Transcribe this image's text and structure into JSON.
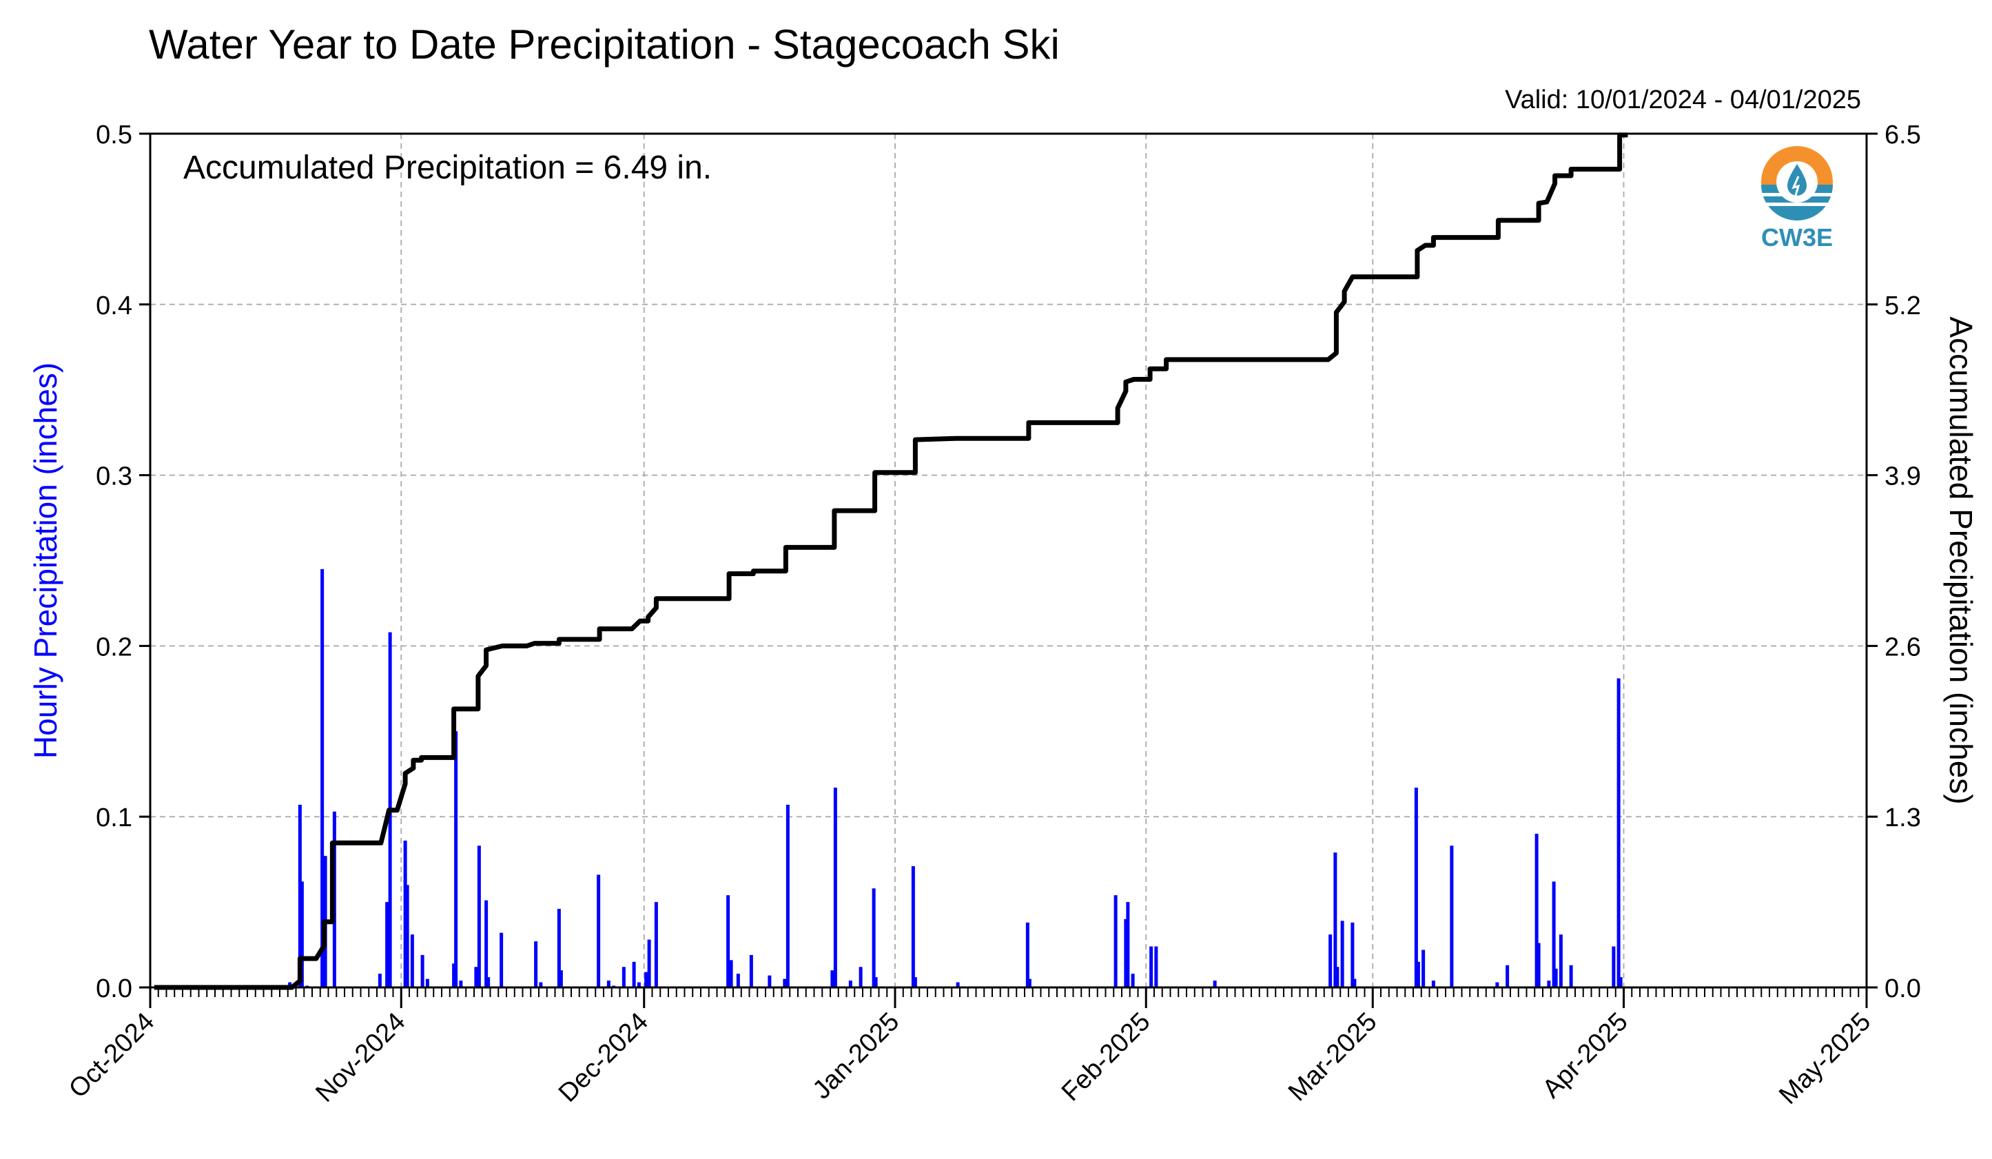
{
  "title": "Water Year to Date Precipitation - Stagecoach Ski",
  "subtitle": "Valid: 10/01/2024 - 04/01/2025",
  "annotation": "Accumulated Precipitation = 6.49 in.",
  "logo": {
    "text": "CW3E",
    "icon": "water-drop-sun-icon",
    "colors": {
      "orange": "#f5912d",
      "blue": "#2e8fb5"
    }
  },
  "colors": {
    "bars": "#0000ff",
    "line": "#000000",
    "grid": "#b0b0b0",
    "left_axis_label": "#0000ff"
  },
  "chart_data": {
    "type": "bar+line",
    "x_axis": {
      "type": "date",
      "range": [
        "2024-10-01",
        "2025-05-01"
      ],
      "ticks": [
        "2024-10-01",
        "2024-11-01",
        "2024-12-01",
        "2025-01-01",
        "2025-02-01",
        "2025-03-01",
        "2025-04-01",
        "2025-05-01"
      ],
      "tick_labels": [
        "Oct-2024",
        "Nov-2024",
        "Dec-2024",
        "Jan-2025",
        "Feb-2025",
        "Mar-2025",
        "Apr-2025",
        "May-2025"
      ]
    },
    "y_left": {
      "label": "Hourly Precipitation (inches)",
      "range": [
        0,
        0.5
      ],
      "ticks": [
        "0.0",
        "0.1",
        "0.2",
        "0.3",
        "0.4",
        "0.5"
      ]
    },
    "y_right": {
      "label": "Accumulated Precipitation (inches)",
      "range": [
        0,
        6.5
      ],
      "ticks": [
        "0.0",
        "1.3",
        "2.6",
        "3.9",
        "5.2",
        "6.5"
      ]
    },
    "grid": true,
    "series": [
      {
        "type": "bar",
        "axis": "left",
        "x": [
          "2024-10-18",
          "2024-10-19",
          "2024-10-19",
          "2024-10-20",
          "2024-10-22",
          "2024-10-22",
          "2024-10-22",
          "2024-10-23",
          "2024-10-29",
          "2024-10-30",
          "2024-10-30",
          "2024-11-01",
          "2024-11-01",
          "2024-11-02",
          "2024-11-03",
          "2024-11-04",
          "2024-11-07",
          "2024-11-07",
          "2024-11-08",
          "2024-11-10",
          "2024-11-10",
          "2024-11-11",
          "2024-11-11",
          "2024-11-13",
          "2024-11-17",
          "2024-11-18",
          "2024-11-20",
          "2024-11-20",
          "2024-11-25",
          "2024-11-26",
          "2024-11-27",
          "2024-11-28",
          "2024-11-29",
          "2024-11-30",
          "2024-12-01",
          "2024-12-01",
          "2024-12-02",
          "2024-12-11",
          "2024-12-11",
          "2024-12-12",
          "2024-12-14",
          "2024-12-16",
          "2024-12-18",
          "2024-12-18",
          "2024-12-24",
          "2024-12-24",
          "2024-12-26",
          "2024-12-27",
          "2024-12-29",
          "2024-12-29",
          "2025-01-03",
          "2025-01-03",
          "2025-01-08",
          "2025-01-17",
          "2025-01-17",
          "2025-01-28",
          "2025-01-29",
          "2025-01-29",
          "2025-01-30",
          "2025-02-01",
          "2025-02-02",
          "2025-02-09",
          "2025-02-23",
          "2025-02-24",
          "2025-02-24",
          "2025-02-25",
          "2025-02-26",
          "2025-02-26",
          "2025-03-06",
          "2025-03-06",
          "2025-03-07",
          "2025-03-08",
          "2025-03-10",
          "2025-03-16",
          "2025-03-17",
          "2025-03-21",
          "2025-03-21",
          "2025-03-22",
          "2025-03-23",
          "2025-03-23",
          "2025-03-24",
          "2025-03-25",
          "2025-03-30",
          "2025-03-31",
          "2025-03-31"
        ],
        "values": [
          0.003,
          0.107,
          0.062,
          0.001,
          0.077,
          0.245,
          0.012,
          0.103,
          0.008,
          0.208,
          0.05,
          0.086,
          0.06,
          0.031,
          0.019,
          0.005,
          0.014,
          0.15,
          0.004,
          0.083,
          0.012,
          0.051,
          0.006,
          0.032,
          0.027,
          0.003,
          0.046,
          0.01,
          0.066,
          0.004,
          0.001,
          0.012,
          0.015,
          0.003,
          0.028,
          0.009,
          0.05,
          0.016,
          0.054,
          0.008,
          0.019,
          0.007,
          0.107,
          0.005,
          0.117,
          0.01,
          0.004,
          0.012,
          0.058,
          0.006,
          0.071,
          0.006,
          0.003,
          0.038,
          0.005,
          0.054,
          0.04,
          0.05,
          0.008,
          0.024,
          0.024,
          0.004,
          0.031,
          0.079,
          0.012,
          0.039,
          0.038,
          0.005,
          0.117,
          0.015,
          0.022,
          0.004,
          0.083,
          0.003,
          0.013,
          0.09,
          0.026,
          0.004,
          0.062,
          0.011,
          0.031,
          0.013,
          0.024,
          0.181,
          0.006
        ]
      },
      {
        "type": "step-line",
        "axis": "right",
        "x": [
          "2024-10-01",
          "2024-10-18",
          "2024-10-19",
          "2024-10-19",
          "2024-10-21",
          "2024-10-22",
          "2024-10-22",
          "2024-10-23",
          "2024-10-23",
          "2024-10-29",
          "2024-10-30",
          "2024-10-31",
          "2024-11-01",
          "2024-11-01",
          "2024-11-02",
          "2024-11-02",
          "2024-11-03",
          "2024-11-03",
          "2024-11-07",
          "2024-11-07",
          "2024-11-10",
          "2024-11-10",
          "2024-11-11",
          "2024-11-11",
          "2024-11-13",
          "2024-11-16",
          "2024-11-17",
          "2024-11-20",
          "2024-11-20",
          "2024-11-25",
          "2024-11-25",
          "2024-11-29",
          "2024-11-30",
          "2024-12-01",
          "2024-12-01",
          "2024-12-02",
          "2024-12-02",
          "2024-12-11",
          "2024-12-11",
          "2024-12-14",
          "2024-12-14",
          "2024-12-18",
          "2024-12-18",
          "2024-12-24",
          "2024-12-24",
          "2024-12-29",
          "2024-12-29",
          "2025-01-03",
          "2025-01-03",
          "2025-01-08",
          "2025-01-17",
          "2025-01-17",
          "2025-01-28",
          "2025-01-28",
          "2025-01-29",
          "2025-01-29",
          "2025-01-30",
          "2025-02-01",
          "2025-02-01",
          "2025-02-03",
          "2025-02-03",
          "2025-02-23",
          "2025-02-24",
          "2025-02-24",
          "2025-02-25",
          "2025-02-25",
          "2025-02-26",
          "2025-02-26",
          "2025-03-06",
          "2025-03-06",
          "2025-03-07",
          "2025-03-08",
          "2025-03-08",
          "2025-03-16",
          "2025-03-16",
          "2025-03-21",
          "2025-03-21",
          "2025-03-22",
          "2025-03-23",
          "2025-03-23",
          "2025-03-25",
          "2025-03-25",
          "2025-03-31",
          "2025-03-31",
          "2025-04-01"
        ],
        "values": [
          0,
          0,
          0.05,
          0.22,
          0.22,
          0.32,
          0.5,
          0.5,
          1.1,
          1.1,
          1.35,
          1.35,
          1.55,
          1.63,
          1.67,
          1.73,
          1.73,
          1.75,
          1.75,
          2.12,
          2.12,
          2.37,
          2.45,
          2.57,
          2.6,
          2.6,
          2.62,
          2.62,
          2.65,
          2.65,
          2.73,
          2.73,
          2.79,
          2.79,
          2.82,
          2.89,
          2.96,
          2.96,
          3.15,
          3.15,
          3.17,
          3.17,
          3.35,
          3.35,
          3.63,
          3.63,
          3.92,
          3.92,
          4.17,
          4.18,
          4.18,
          4.3,
          4.3,
          4.41,
          4.54,
          4.61,
          4.63,
          4.63,
          4.71,
          4.71,
          4.78,
          4.78,
          4.83,
          5.14,
          5.22,
          5.3,
          5.41,
          5.41,
          5.41,
          5.61,
          5.65,
          5.65,
          5.71,
          5.71,
          5.84,
          5.84,
          5.97,
          5.98,
          6.12,
          6.18,
          6.18,
          6.23,
          6.23,
          6.49,
          6.49
        ]
      }
    ]
  }
}
